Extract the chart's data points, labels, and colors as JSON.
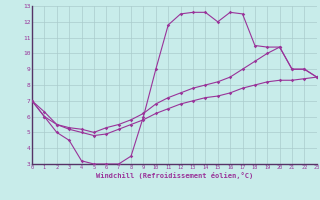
{
  "xlabel": "Windchill (Refroidissement éolien,°C)",
  "background_color": "#c8ecea",
  "grid_color": "#aacccc",
  "line_color": "#993399",
  "xmin": 0,
  "xmax": 23,
  "ymin": 3,
  "ymax": 13,
  "x_ticks": [
    0,
    1,
    2,
    3,
    4,
    5,
    6,
    7,
    8,
    9,
    10,
    11,
    12,
    13,
    14,
    15,
    16,
    17,
    18,
    19,
    20,
    21,
    22,
    23
  ],
  "windchill": [
    7.0,
    6.0,
    5.0,
    4.5,
    3.2,
    3.0,
    3.0,
    3.0,
    3.5,
    6.0,
    9.0,
    11.8,
    12.5,
    12.6,
    12.6,
    12.0,
    12.6,
    12.5,
    10.5,
    10.4,
    10.4,
    9.0,
    9.0,
    8.5
  ],
  "line2": [
    7.0,
    6.3,
    5.5,
    5.3,
    5.2,
    5.0,
    5.3,
    5.5,
    5.8,
    6.2,
    6.8,
    7.2,
    7.5,
    7.8,
    8.0,
    8.2,
    8.5,
    9.0,
    9.5,
    10.0,
    10.4,
    9.0,
    9.0,
    8.5
  ],
  "line3": [
    7.0,
    6.0,
    5.5,
    5.2,
    5.0,
    4.8,
    4.9,
    5.2,
    5.5,
    5.8,
    6.2,
    6.5,
    6.8,
    7.0,
    7.2,
    7.3,
    7.5,
    7.8,
    8.0,
    8.2,
    8.3,
    8.3,
    8.4,
    8.5
  ]
}
